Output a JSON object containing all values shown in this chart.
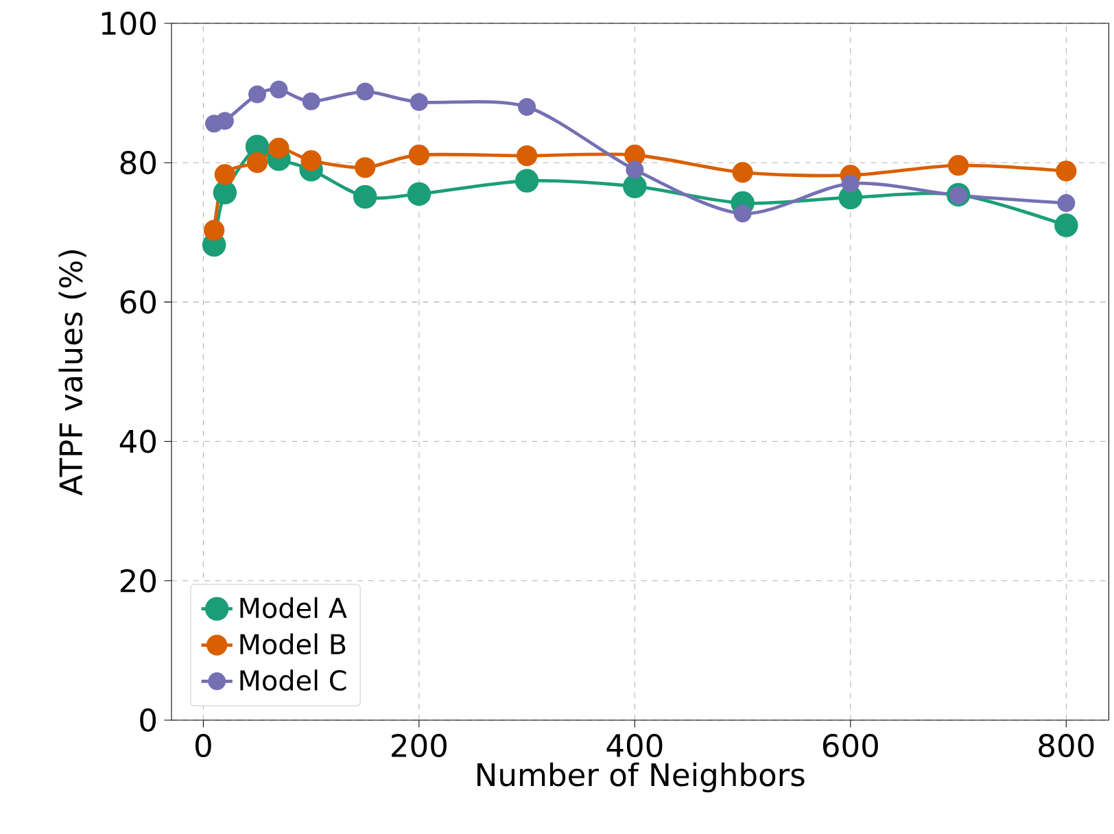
{
  "chart_data": {
    "type": "line",
    "xlabel": "Number of Neighbors",
    "ylabel": "ATPF values (%)",
    "x": [
      10,
      20,
      50,
      70,
      100,
      150,
      200,
      300,
      400,
      500,
      600,
      700,
      800
    ],
    "series": [
      {
        "name": "Model A",
        "color": "#1b9e77",
        "values": [
          68.2,
          75.7,
          82.3,
          80.5,
          79.0,
          75.1,
          75.5,
          77.4,
          76.6,
          74.2,
          75.0,
          75.4,
          71.0
        ]
      },
      {
        "name": "Model B",
        "color": "#d95f02",
        "values": [
          70.3,
          78.3,
          80.0,
          82.1,
          80.3,
          79.3,
          81.1,
          81.0,
          81.1,
          78.6,
          78.2,
          79.6,
          78.8
        ]
      },
      {
        "name": "Model C",
        "color": "#7570b3",
        "values": [
          85.6,
          86.0,
          89.8,
          90.5,
          88.8,
          90.2,
          88.7,
          88.0,
          79.0,
          72.7,
          77.0,
          75.3,
          74.2
        ]
      }
    ],
    "xlim": [
      -29.5,
      839.5
    ],
    "ylim": [
      0,
      100
    ],
    "xticks": [
      0,
      200,
      400,
      600,
      800
    ],
    "yticks": [
      0,
      20,
      40,
      60,
      80,
      100
    ],
    "grid": true,
    "legend": "bottom left",
    "marker": "circle",
    "line_style": "solid"
  }
}
